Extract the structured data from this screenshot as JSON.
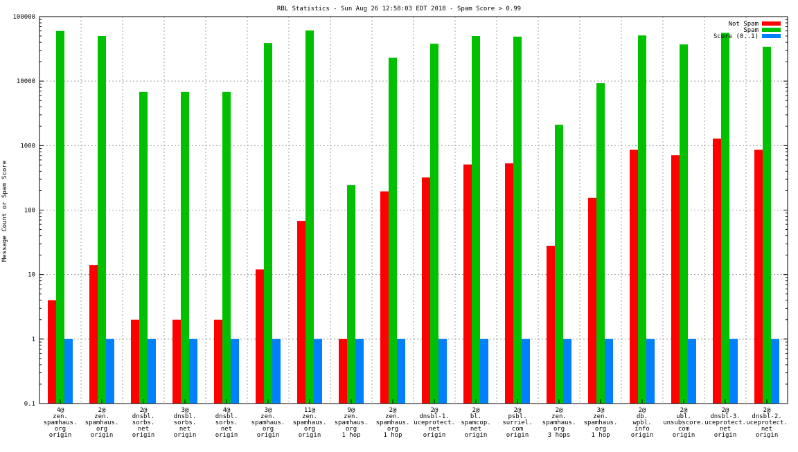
{
  "chart_data": {
    "type": "bar",
    "title": "RBL Statistics - Sun Aug 26 12:58:03 EDT 2018 - Spam Score > 0.99",
    "xlabel": "",
    "ylabel": "Message Count or Spam Score",
    "yscale": "log",
    "ylim": [
      0.1,
      100000
    ],
    "yticks": [
      "0.1",
      "1",
      "10",
      "100",
      "1000",
      "10000",
      "100000"
    ],
    "grid": true,
    "legend_position": "top-right",
    "categories": [
      [
        "4@",
        "zen.",
        "spamhaus.",
        "org",
        "origin"
      ],
      [
        "2@",
        "zen.",
        "spamhaus.",
        "org",
        "origin"
      ],
      [
        "2@",
        "dnsbl.",
        "sorbs.",
        "net",
        "origin"
      ],
      [
        "3@",
        "dnsbl.",
        "sorbs.",
        "net",
        "origin"
      ],
      [
        "4@",
        "dnsbl.",
        "sorbs.",
        "net",
        "origin"
      ],
      [
        "3@",
        "zen.",
        "spamhaus.",
        "org",
        "origin"
      ],
      [
        "11@",
        "zen.",
        "spamhaus.",
        "org",
        "origin"
      ],
      [
        "9@",
        "zen.",
        "spamhaus.",
        "org",
        "1 hop"
      ],
      [
        "2@",
        "zen.",
        "spamhaus.",
        "org",
        "1 hop"
      ],
      [
        "2@",
        "dnsbl-1.",
        "uceprotect.",
        "net",
        "origin"
      ],
      [
        "2@",
        "bl.",
        "spamcop.",
        "net",
        "origin"
      ],
      [
        "2@",
        "psbl.",
        "surriel.",
        "com",
        "origin"
      ],
      [
        "2@",
        "zen.",
        "spamhaus.",
        "org",
        "3 hops"
      ],
      [
        "3@",
        "zen.",
        "spamhaus.",
        "org",
        "1 hop"
      ],
      [
        "2@",
        "db.",
        "wpbl.",
        "info",
        "origin"
      ],
      [
        "2@",
        "ubl.",
        "unsubscore.",
        "com",
        "origin"
      ],
      [
        "2@",
        "dnsbl-3.",
        "uceprotect.",
        "net",
        "origin"
      ],
      [
        "2@",
        "dnsbl-2.",
        "uceprotect.",
        "net",
        "origin"
      ]
    ],
    "series": [
      {
        "name": "Not Spam",
        "color": "#ff0000",
        "values": [
          4,
          14,
          2,
          2,
          2,
          12,
          68,
          1,
          195,
          320,
          510,
          530,
          28,
          155,
          860,
          710,
          1280,
          860
        ]
      },
      {
        "name": "Spam",
        "color": "#00c000",
        "values": [
          60000,
          50000,
          6800,
          6800,
          6800,
          39000,
          61000,
          245,
          23000,
          38000,
          50000,
          49000,
          2100,
          9300,
          51000,
          37000,
          56000,
          34000
        ]
      },
      {
        "name": "Score (0..1)",
        "color": "#0080ff",
        "values": [
          1,
          1,
          1,
          1,
          1,
          1,
          1,
          1,
          1,
          1,
          1,
          1,
          1,
          1,
          1,
          1,
          1,
          1
        ]
      }
    ]
  }
}
